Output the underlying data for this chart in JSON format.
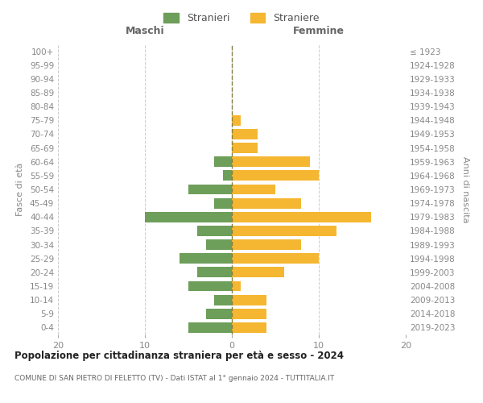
{
  "age_groups": [
    "0-4",
    "5-9",
    "10-14",
    "15-19",
    "20-24",
    "25-29",
    "30-34",
    "35-39",
    "40-44",
    "45-49",
    "50-54",
    "55-59",
    "60-64",
    "65-69",
    "70-74",
    "75-79",
    "80-84",
    "85-89",
    "90-94",
    "95-99",
    "100+"
  ],
  "birth_years": [
    "2019-2023",
    "2014-2018",
    "2009-2013",
    "2004-2008",
    "1999-2003",
    "1994-1998",
    "1989-1993",
    "1984-1988",
    "1979-1983",
    "1974-1978",
    "1969-1973",
    "1964-1968",
    "1959-1963",
    "1954-1958",
    "1949-1953",
    "1944-1948",
    "1939-1943",
    "1934-1938",
    "1929-1933",
    "1924-1928",
    "≤ 1923"
  ],
  "maschi": [
    5,
    3,
    2,
    5,
    4,
    6,
    3,
    4,
    10,
    2,
    5,
    1,
    2,
    0,
    0,
    0,
    0,
    0,
    0,
    0,
    0
  ],
  "femmine": [
    4,
    4,
    4,
    1,
    6,
    10,
    8,
    12,
    16,
    8,
    5,
    10,
    9,
    3,
    3,
    1,
    0,
    0,
    0,
    0,
    0
  ],
  "color_maschi": "#6d9e5a",
  "color_femmine": "#f5b731",
  "label_maschi": "Stranieri",
  "label_femmine": "Straniere",
  "title": "Popolazione per cittadinanza straniera per età e sesso - 2024",
  "subtitle": "COMUNE DI SAN PIETRO DI FELETTO (TV) - Dati ISTAT al 1° gennaio 2024 - TUTTITALIA.IT",
  "header_left": "Maschi",
  "header_right": "Femmine",
  "ylabel_left": "Fasce di età",
  "ylabel_right": "Anni di nascita",
  "xlim": 20,
  "background_color": "#ffffff",
  "grid_color": "#cccccc"
}
